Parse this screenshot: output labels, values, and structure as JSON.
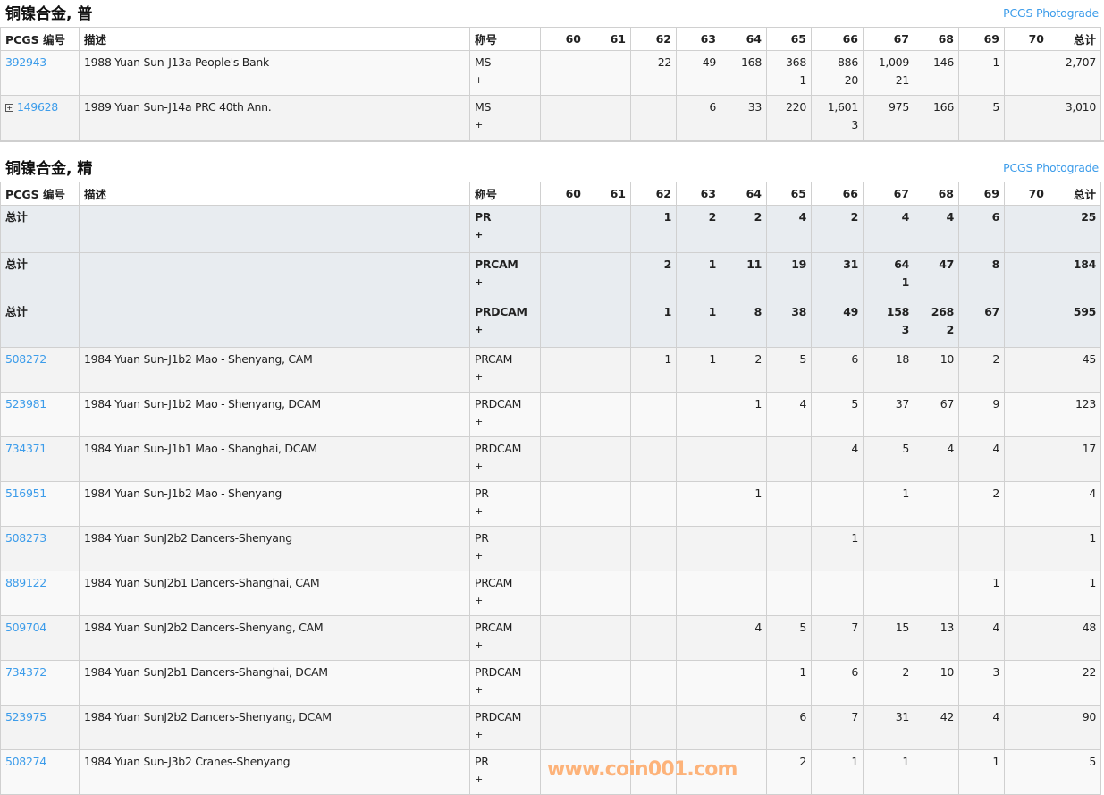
{
  "columns": {
    "id": "PCGS 编号",
    "desc": "描述",
    "designation": "称号",
    "grades": [
      "60",
      "61",
      "62",
      "63",
      "64",
      "65",
      "66",
      "67",
      "68",
      "69",
      "70"
    ],
    "total": "总计"
  },
  "photograde_label": "PCGS Photograde",
  "sections": [
    {
      "title": "铜镍合金, 普",
      "rows": [
        {
          "type": "item",
          "id": "392943",
          "desc": "1988 Yuan Sun-J13a People's Bank",
          "des": "MS",
          "plus": "+",
          "grades": [
            "",
            "",
            "22",
            "49",
            "168",
            [
              "368",
              "1"
            ],
            [
              "886",
              "20"
            ],
            [
              "1,009",
              "21"
            ],
            "146",
            "1",
            ""
          ],
          "total": "2,707"
        },
        {
          "type": "item",
          "expand": true,
          "id": "149628",
          "desc": "1989 Yuan Sun-J14a PRC 40th Ann.",
          "des": "MS",
          "plus": "+",
          "grades": [
            "",
            "",
            "",
            "6",
            "33",
            "220",
            [
              "1,601",
              "3"
            ],
            "975",
            "166",
            "5",
            ""
          ],
          "total": "3,010"
        }
      ]
    },
    {
      "title": "铜镍合金, 精",
      "rows": [
        {
          "type": "total",
          "id": "总计",
          "desc": "",
          "des": "PR",
          "plus": "+",
          "grades": [
            "",
            "",
            "1",
            "2",
            "2",
            "4",
            "2",
            "4",
            "4",
            "6",
            ""
          ],
          "total": "25"
        },
        {
          "type": "total",
          "id": "总计",
          "desc": "",
          "des": "PRCAM",
          "plus": "+",
          "grades": [
            "",
            "",
            "2",
            "1",
            "11",
            "19",
            "31",
            [
              "64",
              "1"
            ],
            "47",
            "8",
            ""
          ],
          "total": "184"
        },
        {
          "type": "total",
          "id": "总计",
          "desc": "",
          "des": "PRDCAM",
          "plus": "+",
          "grades": [
            "",
            "",
            "1",
            "1",
            "8",
            "38",
            "49",
            [
              "158",
              "3"
            ],
            [
              "268",
              "2"
            ],
            "67",
            ""
          ],
          "total": "595"
        },
        {
          "type": "item",
          "id": "508272",
          "desc": "1984 Yuan Sun-J1b2 Mao - Shenyang, CAM",
          "des": "PRCAM",
          "plus": "+",
          "grades": [
            "",
            "",
            "1",
            "1",
            "2",
            "5",
            "6",
            "18",
            "10",
            "2",
            ""
          ],
          "total": "45"
        },
        {
          "type": "item",
          "id": "523981",
          "desc": "1984 Yuan Sun-J1b2 Mao - Shenyang, DCAM",
          "des": "PRDCAM",
          "plus": "+",
          "grades": [
            "",
            "",
            "",
            "",
            "1",
            "4",
            "5",
            "37",
            "67",
            "9",
            ""
          ],
          "total": "123"
        },
        {
          "type": "item",
          "id": "734371",
          "desc": "1984 Yuan Sun-J1b1 Mao - Shanghai, DCAM",
          "des": "PRDCAM",
          "plus": "+",
          "grades": [
            "",
            "",
            "",
            "",
            "",
            "",
            "4",
            "5",
            "4",
            "4",
            ""
          ],
          "total": "17"
        },
        {
          "type": "item",
          "id": "516951",
          "desc": "1984 Yuan Sun-J1b2 Mao - Shenyang",
          "des": "PR",
          "plus": "+",
          "grades": [
            "",
            "",
            "",
            "",
            "1",
            "",
            "",
            "1",
            "",
            "2",
            ""
          ],
          "total": "4"
        },
        {
          "type": "item",
          "id": "508273",
          "desc": "1984 Yuan SunJ2b2 Dancers-Shenyang",
          "des": "PR",
          "plus": "+",
          "grades": [
            "",
            "",
            "",
            "",
            "",
            "",
            "1",
            "",
            "",
            "",
            ""
          ],
          "total": "1"
        },
        {
          "type": "item",
          "id": "889122",
          "desc": "1984 Yuan SunJ2b1 Dancers-Shanghai, CAM",
          "des": "PRCAM",
          "plus": "+",
          "grades": [
            "",
            "",
            "",
            "",
            "",
            "",
            "",
            "",
            "",
            "1",
            ""
          ],
          "total": "1"
        },
        {
          "type": "item",
          "id": "509704",
          "desc": "1984 Yuan SunJ2b2 Dancers-Shenyang, CAM",
          "des": "PRCAM",
          "plus": "+",
          "grades": [
            "",
            "",
            "",
            "",
            "4",
            "5",
            "7",
            "15",
            "13",
            "4",
            ""
          ],
          "total": "48"
        },
        {
          "type": "item",
          "id": "734372",
          "desc": "1984 Yuan SunJ2b1 Dancers-Shanghai, DCAM",
          "des": "PRDCAM",
          "plus": "+",
          "grades": [
            "",
            "",
            "",
            "",
            "",
            "1",
            "6",
            "2",
            "10",
            "3",
            ""
          ],
          "total": "22"
        },
        {
          "type": "item",
          "id": "523975",
          "desc": "1984 Yuan SunJ2b2 Dancers-Shenyang, DCAM",
          "des": "PRDCAM",
          "plus": "+",
          "grades": [
            "",
            "",
            "",
            "",
            "",
            "6",
            "7",
            "31",
            "42",
            "4",
            ""
          ],
          "total": "90"
        },
        {
          "type": "item",
          "id": "508274",
          "desc": "1984 Yuan Sun-J3b2 Cranes-Shenyang",
          "des": "PR",
          "plus": "+",
          "grades": [
            "",
            "",
            "",
            "",
            "",
            "2",
            "1",
            "1",
            "",
            "1",
            ""
          ],
          "total": "5"
        }
      ]
    }
  ],
  "watermark": "www.coin001.com",
  "colors": {
    "link": "#3c9cea",
    "total_row_bg": "#e8ecf0",
    "border": "#d0d0d0"
  }
}
